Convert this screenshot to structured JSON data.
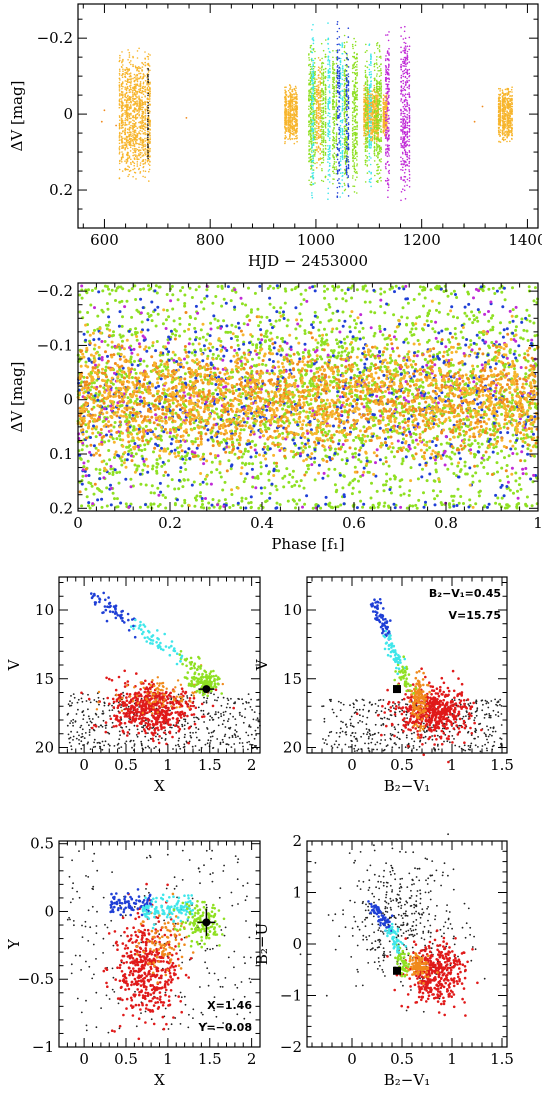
{
  "colors": {
    "orange": "#f7b52c",
    "darkorange": "#f08a1c",
    "green": "#8fe022",
    "blue": "#1f3fd6",
    "cyan": "#3fe6ea",
    "magenta": "#c02ad6",
    "red": "#e01a1a",
    "black": "#222222"
  },
  "chart_data": [
    {
      "id": "light-curve",
      "type": "scatter",
      "xlabel": "HJD − 2453000",
      "ylabel": "ΔV [mag]",
      "xlim": [
        550,
        1420
      ],
      "ylim": [
        0.3,
        -0.29
      ],
      "xticks": [
        600,
        800,
        1000,
        1200,
        1400
      ],
      "yticks": [
        -0.2,
        0,
        0.2
      ],
      "ytick_labels": [
        "−0.2",
        "0",
        "0.2"
      ],
      "series": [
        {
          "color": "orange",
          "segments": [
            [
              628,
              688,
              0.18
            ],
            [
              940,
              966,
              0.08
            ],
            [
              1000,
              1010,
              0.15
            ],
            [
              1090,
              1120,
              0.08
            ],
            [
              1126,
              1135,
              0.06
            ],
            [
              1345,
              1372,
              0.08
            ]
          ]
        },
        {
          "color": "green",
          "segments": [
            [
              985,
              1000,
              0.2
            ],
            [
              1010,
              1020,
              0.2
            ],
            [
              1030,
              1040,
              0.2
            ],
            [
              1052,
              1060,
              0.22
            ],
            [
              1068,
              1080,
              0.22
            ],
            [
              1092,
              1098,
              0.2
            ],
            [
              1110,
              1125,
              0.2
            ]
          ]
        },
        {
          "color": "cyan",
          "segments": [
            [
              990,
              997,
              0.26
            ],
            [
              1022,
              1028,
              0.25
            ],
            [
              1045,
              1052,
              0.25
            ],
            [
              1100,
              1107,
              0.22
            ]
          ]
        },
        {
          "color": "blue",
          "segments": [
            [
              1040,
              1046,
              0.26
            ],
            [
              1057,
              1062,
              0.24
            ]
          ]
        },
        {
          "color": "magenta",
          "segments": [
            [
              1130,
              1140,
              0.24
            ],
            [
              1160,
              1178,
              0.24
            ]
          ]
        }
      ]
    },
    {
      "id": "phase-diagram",
      "type": "scatter",
      "xlabel": "Phase [f₁]",
      "ylabel": "ΔV [mag]",
      "xlim": [
        0,
        1
      ],
      "ylim": [
        0.205,
        -0.215
      ],
      "xticks": [
        0,
        0.2,
        0.4,
        0.6,
        0.8,
        1
      ],
      "xtick_labels": [
        "0",
        "0.2",
        "0.4",
        "0.6",
        "0.8",
        "1"
      ],
      "yticks": [
        -0.2,
        -0.1,
        0,
        0.1,
        0.2
      ],
      "ytick_labels": [
        "−0.2",
        "−0.1",
        "0",
        "0.1",
        "0.2"
      ],
      "series": [
        {
          "color": "green",
          "spread": 0.21
        },
        {
          "color": "blue",
          "spread": 0.18
        },
        {
          "color": "magenta",
          "spread": 0.18
        },
        {
          "color": "darkorange",
          "spread": 0.09
        },
        {
          "color": "orange",
          "spread": 0.1
        }
      ]
    },
    {
      "id": "cmd-x-v",
      "type": "scatter",
      "xlabel": "X",
      "ylabel": "V",
      "xlim": [
        -0.3,
        2.1
      ],
      "ylim": [
        20.4,
        7.6
      ],
      "xticks": [
        0,
        0.5,
        1,
        1.5,
        2
      ],
      "xtick_labels": [
        "0",
        "0.5",
        "1",
        "1.5",
        "2"
      ],
      "yticks": [
        10,
        15,
        20
      ],
      "ytick_labels": [
        "10",
        "15",
        "20"
      ],
      "target": {
        "x": 1.46,
        "y": 15.75,
        "err": 0.0,
        "shape": "circle"
      }
    },
    {
      "id": "cmd-bv-v",
      "type": "scatter",
      "xlabel": "B₂−V₁",
      "ylabel": "V",
      "xlim": [
        -0.45,
        1.55
      ],
      "ylim": [
        20.4,
        7.6
      ],
      "xticks": [
        0,
        0.5,
        1,
        1.5
      ],
      "xtick_labels": [
        "0",
        "0.5",
        "1",
        "1.5"
      ],
      "yticks": [
        10,
        15,
        20
      ],
      "ytick_labels": [
        "10",
        "15",
        "20"
      ],
      "annotations": [
        "B₂−V₁=0.45",
        "V=15.75"
      ],
      "target": {
        "x": 0.45,
        "y": 15.75,
        "shape": "square"
      }
    },
    {
      "id": "cc-x-y",
      "type": "scatter",
      "xlabel": "X",
      "ylabel": "Y",
      "xlim": [
        -0.3,
        2.1
      ],
      "ylim": [
        -1.0,
        0.52
      ],
      "xticks": [
        0,
        0.5,
        1,
        1.5,
        2
      ],
      "xtick_labels": [
        "0",
        "0.5",
        "1",
        "1.5",
        "2"
      ],
      "yticks": [
        -1,
        -0.5,
        0,
        0.5
      ],
      "ytick_labels": [
        "−1",
        "−0.5",
        "0",
        "0.5"
      ],
      "annotations": [
        "X=1.46",
        "Y=−0.08"
      ],
      "target": {
        "x": 1.46,
        "y": -0.08,
        "err": 0.1,
        "shape": "circle"
      }
    },
    {
      "id": "cc-bv-bu",
      "type": "scatter",
      "xlabel": "B₂−V₁",
      "ylabel": "B₂−U",
      "xlim": [
        -0.45,
        1.55
      ],
      "ylim": [
        -2.0,
        2.0
      ],
      "xticks": [
        0,
        0.5,
        1,
        1.5
      ],
      "xtick_labels": [
        "0",
        "0.5",
        "1",
        "1.5"
      ],
      "yticks": [
        -2,
        -1,
        0,
        1,
        2
      ],
      "ytick_labels": [
        "−2",
        "−1",
        "0",
        "1",
        "2"
      ],
      "target": {
        "x": 0.45,
        "y": -0.52,
        "shape": "square"
      }
    }
  ]
}
